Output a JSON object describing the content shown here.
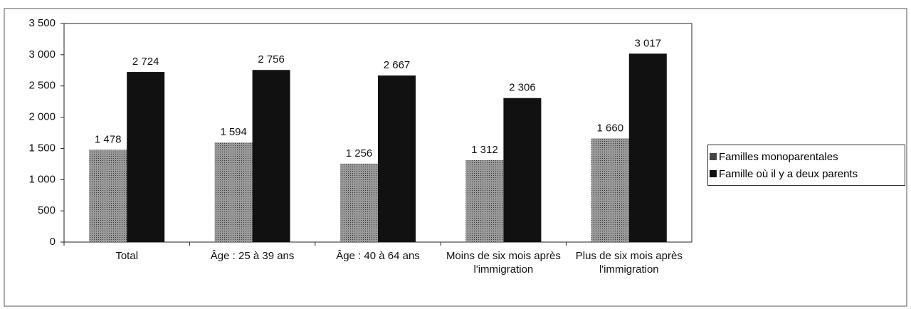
{
  "chart_data": {
    "type": "bar",
    "categories": [
      "Total",
      "Âge : 25 à 39 ans",
      "Âge : 40 à 64 ans",
      "Moins de six mois après l'immigration",
      "Plus de six mois après l'immigration"
    ],
    "series": [
      {
        "name": "Familles monoparentales",
        "color": "#7a7a7a",
        "values": [
          1478,
          1594,
          1256,
          1312,
          1660
        ],
        "value_labels": [
          "1 478",
          "1 594",
          "1 256",
          "1 312",
          "1 660"
        ]
      },
      {
        "name": "Famille où il y a deux parents",
        "color": "#111111",
        "values": [
          2724,
          2756,
          2667,
          2306,
          3017
        ],
        "value_labels": [
          "2 724",
          "2 756",
          "2 667",
          "2 306",
          "3 017"
        ]
      }
    ],
    "ylim": [
      0,
      3500
    ],
    "yticks": [
      0,
      500,
      {
        "value": 1000,
        "label": "1 000"
      },
      {
        "value": 1500,
        "label": "1 500"
      },
      {
        "value": 2000,
        "label": "2 000"
      },
      {
        "value": 2500,
        "label": "2 500"
      },
      {
        "value": 3000,
        "label": "3 000"
      },
      {
        "value": 3500,
        "label": "3 500"
      }
    ],
    "legend": "right"
  }
}
